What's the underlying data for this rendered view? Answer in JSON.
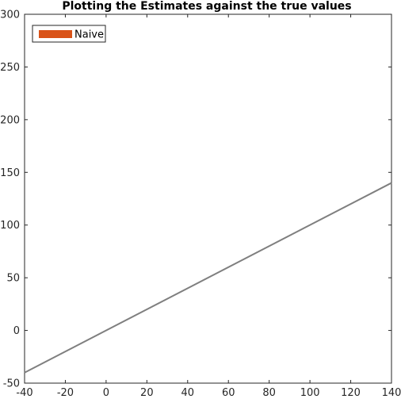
{
  "chart_data": {
    "type": "line",
    "title": "Plotting the Estimates against the true values",
    "xlabel": "",
    "ylabel": "",
    "xlim": [
      -40,
      140
    ],
    "ylim": [
      -50,
      300
    ],
    "xticks": [
      -40,
      -20,
      0,
      20,
      40,
      60,
      80,
      100,
      120,
      140
    ],
    "yticks": [
      -50,
      0,
      50,
      100,
      150,
      200,
      250,
      300
    ],
    "grid": false,
    "legend": {
      "placement": "top-left",
      "entries": [
        {
          "label": "Naive",
          "color": "#d95319"
        }
      ]
    },
    "series": [
      {
        "color": "#7f7f7f",
        "x": [
          -40,
          140
        ],
        "y": [
          -40,
          140
        ]
      }
    ]
  }
}
